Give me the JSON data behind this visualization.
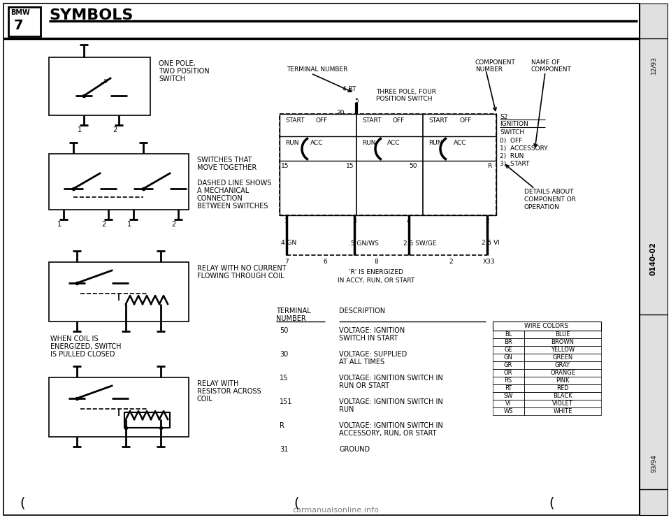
{
  "title": "SYMBOLS",
  "bg_color": "#ffffff",
  "page_ref_top": "12/93",
  "page_ref_center": "0140-02",
  "page_ref_bottom": "93/94",
  "wire_colors": [
    [
      "BL",
      "BLUE"
    ],
    [
      "BR",
      "BROWN"
    ],
    [
      "GE",
      "YELLOW"
    ],
    [
      "GN",
      "GREEN"
    ],
    [
      "GR",
      "GRAY"
    ],
    [
      "OR",
      "ORANGE"
    ],
    [
      "RS",
      "PINK"
    ],
    [
      "RT",
      "RED"
    ],
    [
      "SW",
      "BLACK"
    ],
    [
      "VI",
      "VIOLET"
    ],
    [
      "WS",
      "WHITE"
    ]
  ],
  "terminal_table": [
    [
      "50",
      "VOLTAGE: IGNITION",
      "SWITCH IN START"
    ],
    [
      "30",
      "VOLTAGE: SUPPLIED",
      "AT ALL TIMES"
    ],
    [
      "15",
      "VOLTAGE: IGNITION SWITCH IN",
      "RUN OR START"
    ],
    [
      "151",
      "VOLTAGE: IGNITION SWITCH IN",
      "RUN"
    ],
    [
      "R",
      "VOLTAGE: IGNITION SWITCH IN",
      "ACCESSORY, RUN, OR START"
    ],
    [
      "31",
      "GROUND",
      ""
    ]
  ],
  "sym1_label": [
    "ONE POLE,",
    "TWO POSITION",
    "SWITCH"
  ],
  "sym2_label": [
    "SWITCHES THAT",
    "MOVE TOGETHER",
    "",
    "DASHED LINE SHOWS",
    "A MECHANICAL",
    "CONNECTION",
    "BETWEEN SWITCHES"
  ],
  "sym3_label": [
    "RELAY WITH NO CURRENT",
    "FLOWING THROUGH COIL"
  ],
  "sym3_sublabel": [
    "WHEN COIL IS",
    "ENERGIZED, SWITCH",
    "IS PULLED CLOSED"
  ],
  "sym4_label": [
    "RELAY WITH",
    "RESISTOR ACROSS",
    "COIL"
  ]
}
